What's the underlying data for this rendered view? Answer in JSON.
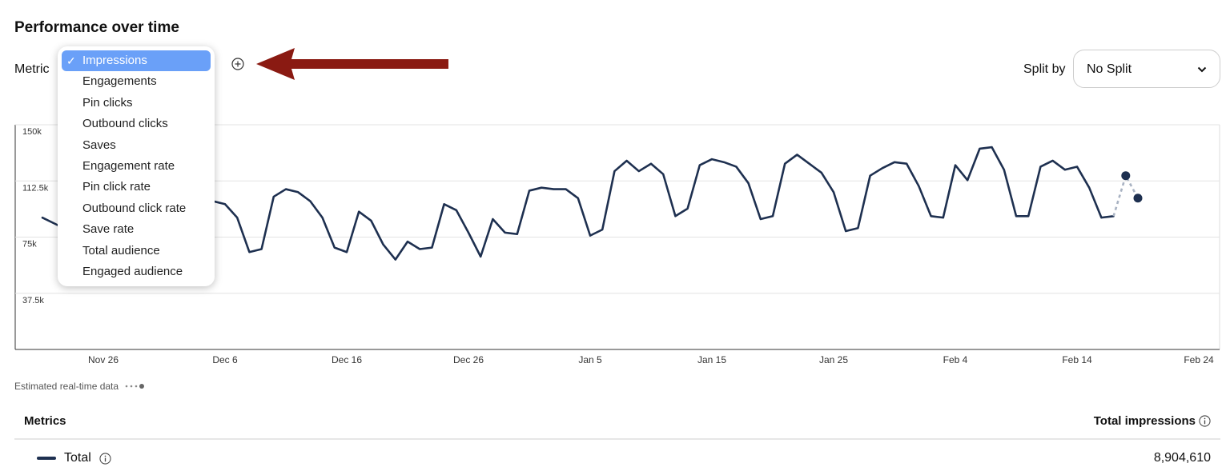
{
  "title": "Performance over time",
  "metric": {
    "label": "Metric",
    "options": [
      "Impressions",
      "Engagements",
      "Pin clicks",
      "Outbound clicks",
      "Saves",
      "Engagement rate",
      "Pin click rate",
      "Outbound click rate",
      "Save rate",
      "Total audience",
      "Engaged audience"
    ],
    "selected_check": "✓"
  },
  "split": {
    "label": "Split by",
    "value": "No Split"
  },
  "chart_data": {
    "type": "line",
    "y_ticks": [
      "150k",
      "112.5k",
      "75k",
      "37.5k"
    ],
    "ylim": [
      0,
      150000
    ],
    "x_tick_labels": [
      "Nov 26",
      "Dec 6",
      "Dec 16",
      "Dec 26",
      "Jan 5",
      "Jan 15",
      "Jan 25",
      "Feb 4",
      "Feb 14",
      "Feb 24"
    ],
    "x_tick_days": [
      5,
      15,
      25,
      35,
      45,
      55,
      65,
      75,
      85,
      95
    ],
    "series": [
      {
        "values": [
          88000,
          84000,
          80000,
          76000,
          78000,
          86000,
          92000,
          95000,
          90000,
          70000,
          66000,
          65000,
          95000,
          101000,
          99000,
          97000,
          88000,
          65000,
          67000,
          102000,
          107000,
          105000,
          99000,
          88000,
          68000,
          65000,
          92000,
          86000,
          70000,
          60000,
          72000,
          67000,
          68000,
          97000,
          93000,
          78000,
          62000,
          87000,
          78000,
          77000,
          106000,
          108000,
          107000,
          107000,
          101000,
          76000,
          80000,
          119000,
          126000,
          119000,
          124000,
          117000,
          89000,
          94000,
          123000,
          127000,
          125000,
          122000,
          111000,
          87000,
          89000,
          124000,
          130000,
          124000,
          118000,
          105000,
          79000,
          81000,
          116000,
          121000,
          125000,
          124000,
          109000,
          89000,
          88000,
          123000,
          113000,
          134000,
          135000,
          120000,
          89000,
          89000,
          122000,
          126000,
          120000,
          122000,
          108000,
          88000,
          89000
        ]
      },
      {
        "values": [
          89000,
          116000,
          101000
        ]
      }
    ]
  },
  "estimated_note": "Estimated real-time data",
  "metrics_section": {
    "header": "Metrics",
    "total_header": "Total impressions",
    "row_label": "Total",
    "row_value": "8,904,610"
  },
  "colors": {
    "line": "#1e3050",
    "estimate": "#a9b3c3",
    "accent": "#6aa0f8",
    "arrow": "#8a1a12"
  }
}
